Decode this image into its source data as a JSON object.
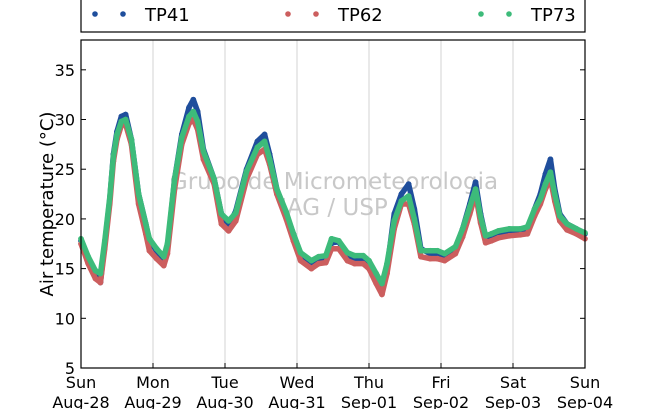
{
  "chart_data": {
    "type": "scatter",
    "title": "",
    "xlabel": "",
    "ylabel": "Air temperature (°C)",
    "ylim": [
      5,
      38
    ],
    "y_ticks": [
      5,
      10,
      15,
      20,
      25,
      30,
      35
    ],
    "x_ticks": [
      {
        "day": "Sun",
        "date": "Aug-28"
      },
      {
        "day": "Mon",
        "date": "Aug-29"
      },
      {
        "day": "Tue",
        "date": "Aug-30"
      },
      {
        "day": "Wed",
        "date": "Aug-31"
      },
      {
        "day": "Thu",
        "date": "Sep-01"
      },
      {
        "day": "Fri",
        "date": "Sep-02"
      },
      {
        "day": "Sat",
        "date": "Sep-03"
      },
      {
        "day": "Sun",
        "date": "Sep-04"
      }
    ],
    "x_unit": "days from Aug-28 00:00",
    "xlim": [
      0,
      7
    ],
    "grid": "vertical",
    "legend": "top",
    "watermark": [
      "Grupo de Micrometeorologia",
      "IAG / USP"
    ],
    "series": [
      {
        "name": "TP41",
        "color": "#1f4e9c",
        "points": [
          [
            0.0,
            17.8
          ],
          [
            0.1,
            15.8
          ],
          [
            0.2,
            14.3
          ],
          [
            0.27,
            13.6
          ],
          [
            0.33,
            17.5
          ],
          [
            0.4,
            22.0
          ],
          [
            0.45,
            26.5
          ],
          [
            0.5,
            28.8
          ],
          [
            0.56,
            30.3
          ],
          [
            0.62,
            30.5
          ],
          [
            0.7,
            28.0
          ],
          [
            0.8,
            22.5
          ],
          [
            0.9,
            19.5
          ],
          [
            0.95,
            17.8
          ],
          [
            1.05,
            16.8
          ],
          [
            1.15,
            15.5
          ],
          [
            1.2,
            17.0
          ],
          [
            1.3,
            24.0
          ],
          [
            1.4,
            28.5
          ],
          [
            1.5,
            31.2
          ],
          [
            1.56,
            32.0
          ],
          [
            1.62,
            30.8
          ],
          [
            1.7,
            27.0
          ],
          [
            1.85,
            24.0
          ],
          [
            1.95,
            20.5
          ],
          [
            2.05,
            19.3
          ],
          [
            2.15,
            20.8
          ],
          [
            2.3,
            25.0
          ],
          [
            2.45,
            27.8
          ],
          [
            2.55,
            28.5
          ],
          [
            2.62,
            26.5
          ],
          [
            2.72,
            23.0
          ],
          [
            2.85,
            20.5
          ],
          [
            2.95,
            18.5
          ],
          [
            3.05,
            16.5
          ],
          [
            3.2,
            15.3
          ],
          [
            3.3,
            15.8
          ],
          [
            3.4,
            16.0
          ],
          [
            3.48,
            17.6
          ],
          [
            3.58,
            17.7
          ],
          [
            3.7,
            16.3
          ],
          [
            3.8,
            16.0
          ],
          [
            3.92,
            16.0
          ],
          [
            4.0,
            15.5
          ],
          [
            4.1,
            14.0
          ],
          [
            4.18,
            12.8
          ],
          [
            4.25,
            15.0
          ],
          [
            4.35,
            20.5
          ],
          [
            4.45,
            22.5
          ],
          [
            4.55,
            23.5
          ],
          [
            4.63,
            21.0
          ],
          [
            4.72,
            17.0
          ],
          [
            4.85,
            16.5
          ],
          [
            4.95,
            16.5
          ],
          [
            5.05,
            16.2
          ],
          [
            5.2,
            17.0
          ],
          [
            5.3,
            19.0
          ],
          [
            5.4,
            21.5
          ],
          [
            5.48,
            23.7
          ],
          [
            5.55,
            20.5
          ],
          [
            5.62,
            18.2
          ],
          [
            5.7,
            18.3
          ],
          [
            5.8,
            18.6
          ],
          [
            5.95,
            18.8
          ],
          [
            6.1,
            18.8
          ],
          [
            6.2,
            18.9
          ],
          [
            6.3,
            21.0
          ],
          [
            6.38,
            22.5
          ],
          [
            6.45,
            24.5
          ],
          [
            6.52,
            26.0
          ],
          [
            6.58,
            23.0
          ],
          [
            6.65,
            20.5
          ],
          [
            6.75,
            19.5
          ],
          [
            6.88,
            19.0
          ],
          [
            7.0,
            18.5
          ]
        ]
      },
      {
        "name": "TP62",
        "color": "#cc5e5e",
        "points": [
          [
            0.0,
            17.5
          ],
          [
            0.1,
            15.5
          ],
          [
            0.2,
            14.0
          ],
          [
            0.27,
            13.6
          ],
          [
            0.33,
            17.0
          ],
          [
            0.4,
            21.5
          ],
          [
            0.45,
            25.8
          ],
          [
            0.5,
            28.0
          ],
          [
            0.56,
            29.4
          ],
          [
            0.62,
            29.5
          ],
          [
            0.7,
            27.5
          ],
          [
            0.8,
            21.5
          ],
          [
            0.9,
            18.5
          ],
          [
            0.95,
            16.8
          ],
          [
            1.05,
            16.0
          ],
          [
            1.15,
            15.3
          ],
          [
            1.2,
            16.5
          ],
          [
            1.3,
            23.0
          ],
          [
            1.4,
            27.5
          ],
          [
            1.5,
            29.6
          ],
          [
            1.56,
            30.0
          ],
          [
            1.62,
            29.0
          ],
          [
            1.7,
            26.0
          ],
          [
            1.85,
            23.5
          ],
          [
            1.95,
            19.5
          ],
          [
            2.05,
            18.8
          ],
          [
            2.15,
            19.8
          ],
          [
            2.3,
            24.0
          ],
          [
            2.45,
            26.5
          ],
          [
            2.55,
            27.0
          ],
          [
            2.62,
            25.5
          ],
          [
            2.72,
            22.5
          ],
          [
            2.85,
            20.0
          ],
          [
            2.95,
            17.8
          ],
          [
            3.05,
            15.8
          ],
          [
            3.2,
            15.0
          ],
          [
            3.3,
            15.5
          ],
          [
            3.4,
            15.6
          ],
          [
            3.48,
            17.0
          ],
          [
            3.58,
            17.0
          ],
          [
            3.7,
            15.8
          ],
          [
            3.8,
            15.5
          ],
          [
            3.92,
            15.5
          ],
          [
            4.0,
            15.0
          ],
          [
            4.1,
            13.5
          ],
          [
            4.18,
            12.4
          ],
          [
            4.25,
            14.5
          ],
          [
            4.35,
            19.0
          ],
          [
            4.45,
            21.5
          ],
          [
            4.55,
            21.5
          ],
          [
            4.63,
            19.5
          ],
          [
            4.72,
            16.2
          ],
          [
            4.85,
            16.0
          ],
          [
            4.95,
            16.0
          ],
          [
            5.05,
            15.8
          ],
          [
            5.2,
            16.5
          ],
          [
            5.3,
            18.2
          ],
          [
            5.4,
            20.5
          ],
          [
            5.48,
            22.5
          ],
          [
            5.55,
            19.6
          ],
          [
            5.62,
            17.6
          ],
          [
            5.7,
            17.8
          ],
          [
            5.8,
            18.1
          ],
          [
            5.95,
            18.3
          ],
          [
            6.1,
            18.4
          ],
          [
            6.2,
            18.5
          ],
          [
            6.3,
            20.3
          ],
          [
            6.38,
            21.5
          ],
          [
            6.45,
            23.0
          ],
          [
            6.52,
            24.0
          ],
          [
            6.58,
            21.8
          ],
          [
            6.65,
            19.8
          ],
          [
            6.75,
            18.9
          ],
          [
            6.88,
            18.5
          ],
          [
            7.0,
            18.0
          ]
        ]
      },
      {
        "name": "TP73",
        "color": "#3dbb7a",
        "points": [
          [
            0.0,
            18.0
          ],
          [
            0.1,
            16.2
          ],
          [
            0.2,
            14.8
          ],
          [
            0.27,
            14.5
          ],
          [
            0.33,
            17.8
          ],
          [
            0.4,
            22.2
          ],
          [
            0.45,
            26.3
          ],
          [
            0.5,
            28.5
          ],
          [
            0.56,
            29.8
          ],
          [
            0.62,
            30.0
          ],
          [
            0.7,
            28.0
          ],
          [
            0.8,
            22.5
          ],
          [
            0.9,
            19.5
          ],
          [
            0.95,
            18.0
          ],
          [
            1.05,
            17.0
          ],
          [
            1.15,
            16.2
          ],
          [
            1.2,
            17.5
          ],
          [
            1.3,
            24.0
          ],
          [
            1.4,
            28.2
          ],
          [
            1.5,
            30.3
          ],
          [
            1.56,
            30.8
          ],
          [
            1.62,
            29.8
          ],
          [
            1.7,
            26.8
          ],
          [
            1.85,
            24.0
          ],
          [
            1.95,
            20.5
          ],
          [
            2.05,
            19.8
          ],
          [
            2.15,
            20.6
          ],
          [
            2.3,
            24.8
          ],
          [
            2.45,
            27.2
          ],
          [
            2.55,
            27.8
          ],
          [
            2.62,
            26.0
          ],
          [
            2.72,
            23.0
          ],
          [
            2.85,
            20.7
          ],
          [
            2.95,
            18.5
          ],
          [
            3.05,
            16.6
          ],
          [
            3.2,
            15.8
          ],
          [
            3.3,
            16.2
          ],
          [
            3.4,
            16.3
          ],
          [
            3.48,
            18.0
          ],
          [
            3.58,
            17.8
          ],
          [
            3.7,
            16.6
          ],
          [
            3.8,
            16.3
          ],
          [
            3.92,
            16.3
          ],
          [
            4.0,
            15.8
          ],
          [
            4.1,
            14.5
          ],
          [
            4.18,
            13.5
          ],
          [
            4.25,
            15.5
          ],
          [
            4.35,
            19.8
          ],
          [
            4.45,
            21.8
          ],
          [
            4.55,
            22.3
          ],
          [
            4.63,
            20.0
          ],
          [
            4.72,
            16.8
          ],
          [
            4.85,
            16.8
          ],
          [
            4.95,
            16.8
          ],
          [
            5.05,
            16.5
          ],
          [
            5.2,
            17.2
          ],
          [
            5.3,
            19.0
          ],
          [
            5.4,
            21.2
          ],
          [
            5.48,
            23.0
          ],
          [
            5.55,
            20.2
          ],
          [
            5.62,
            18.3
          ],
          [
            5.7,
            18.5
          ],
          [
            5.8,
            18.8
          ],
          [
            5.95,
            19.0
          ],
          [
            6.1,
            19.0
          ],
          [
            6.2,
            19.2
          ],
          [
            6.3,
            21.0
          ],
          [
            6.38,
            22.0
          ],
          [
            6.45,
            23.5
          ],
          [
            6.52,
            24.7
          ],
          [
            6.58,
            22.5
          ],
          [
            6.65,
            20.3
          ],
          [
            6.75,
            19.5
          ],
          [
            6.88,
            19.0
          ],
          [
            7.0,
            18.6
          ]
        ]
      }
    ]
  }
}
